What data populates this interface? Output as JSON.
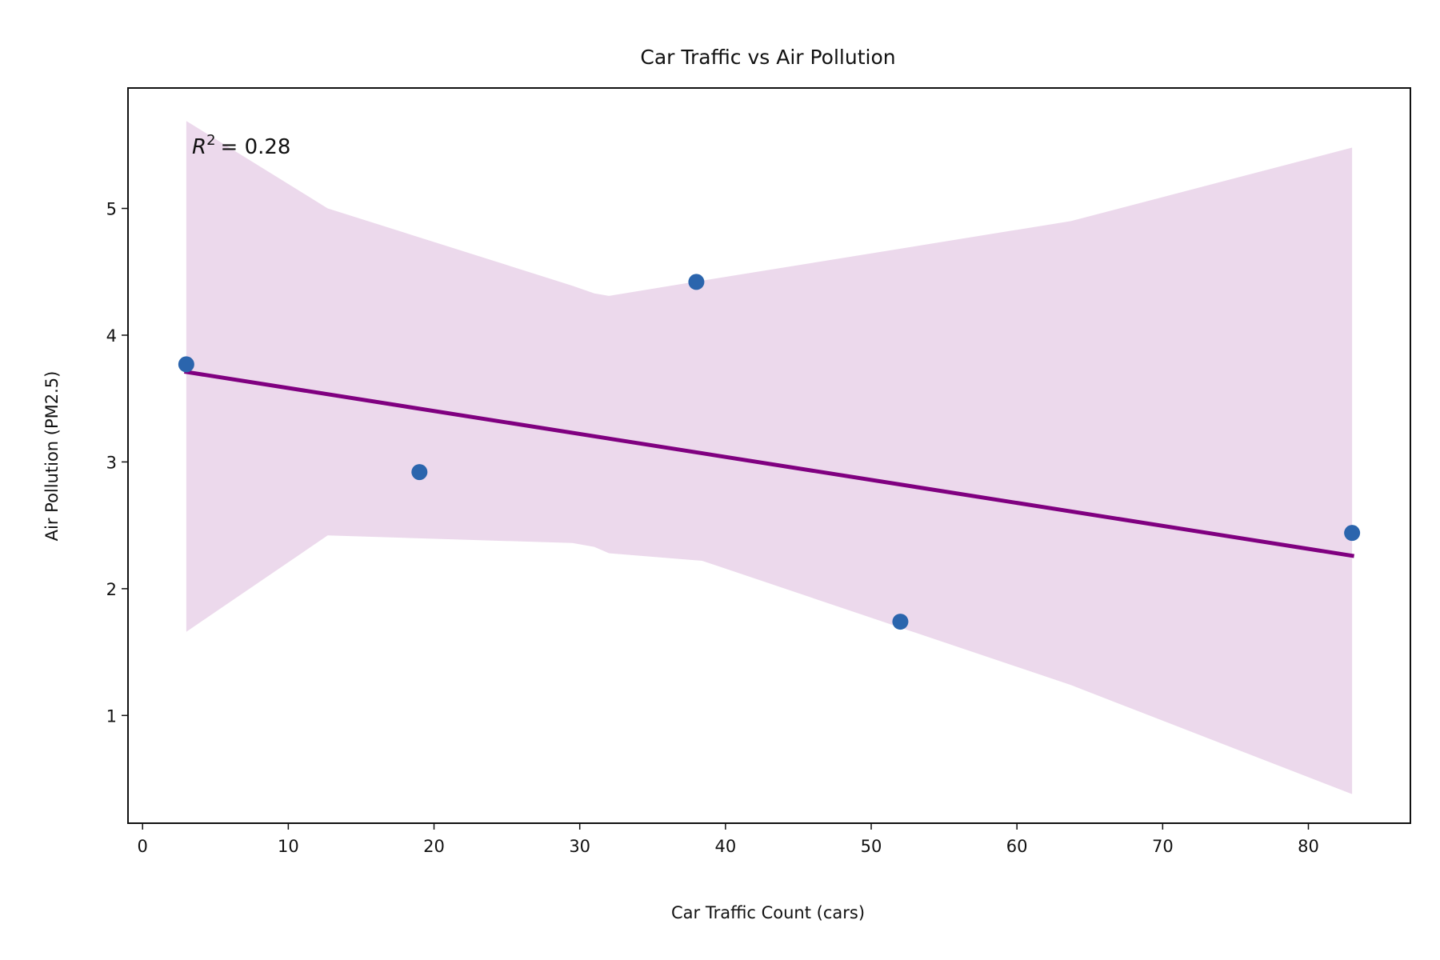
{
  "chart_data": {
    "type": "scatter",
    "title": "Car Traffic vs Air Pollution",
    "xlabel": "Car Traffic Count (cars)",
    "ylabel": "Air Pollution (PM2.5)",
    "xlim": [
      -1,
      87
    ],
    "ylim": [
      0.15,
      5.95
    ],
    "xticks": [
      0,
      10,
      20,
      30,
      40,
      50,
      60,
      70,
      80
    ],
    "yticks": [
      1,
      2,
      3,
      4,
      5
    ],
    "grid": false,
    "points": [
      {
        "x": 3,
        "y": 3.77
      },
      {
        "x": 19,
        "y": 2.92
      },
      {
        "x": 38,
        "y": 4.42
      },
      {
        "x": 52,
        "y": 1.74
      },
      {
        "x": 83,
        "y": 2.44
      }
    ],
    "regression_line": {
      "x": [
        3,
        83
      ],
      "y": [
        3.71,
        2.26
      ]
    },
    "confidence_band": {
      "x": [
        3,
        12.7,
        29.5,
        31.0,
        32.0,
        38.4,
        63.7,
        83
      ],
      "upper": [
        5.69,
        5.0,
        4.39,
        4.33,
        4.31,
        4.43,
        4.9,
        5.48
      ],
      "lower": [
        1.66,
        2.42,
        2.36,
        2.33,
        2.28,
        2.22,
        1.24,
        0.38
      ]
    },
    "annotation": {
      "label_r": "R",
      "label_sup": "2",
      "label_value": "= 0.28"
    },
    "colors": {
      "points": "#2b65ad",
      "line": "#800080",
      "band": "#d9b3d9"
    }
  }
}
